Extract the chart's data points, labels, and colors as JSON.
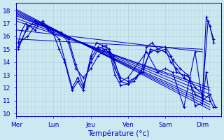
{
  "title": "Température (°c)",
  "x_labels": [
    "Mer",
    "Lun",
    "Jeu",
    "Ven",
    "Sam",
    "Dim"
  ],
  "x_tick_positions": [
    0,
    1,
    2,
    3,
    4,
    5
  ],
  "ylim": [
    9.8,
    18.6
  ],
  "yticks": [
    10,
    11,
    12,
    13,
    14,
    15,
    16,
    17,
    18
  ],
  "xlim": [
    0,
    5.5
  ],
  "bg_color": "#cce8f0",
  "line_color": "#0000cc",
  "grid_color": "#b0d0db",
  "ensemble_lines": [
    {
      "x": [
        0.0,
        5.2
      ],
      "y": [
        18.1,
        10.3
      ]
    },
    {
      "x": [
        0.0,
        5.2
      ],
      "y": [
        18.0,
        10.5
      ]
    },
    {
      "x": [
        0.0,
        5.2
      ],
      "y": [
        17.9,
        10.7
      ]
    },
    {
      "x": [
        0.0,
        5.2
      ],
      "y": [
        17.8,
        10.9
      ]
    },
    {
      "x": [
        0.0,
        5.2
      ],
      "y": [
        17.7,
        11.2
      ]
    },
    {
      "x": [
        0.0,
        5.2
      ],
      "y": [
        17.6,
        11.5
      ]
    },
    {
      "x": [
        0.0,
        5.2
      ],
      "y": [
        17.4,
        11.8
      ]
    },
    {
      "x": [
        0.0,
        5.2
      ],
      "y": [
        17.2,
        12.0
      ]
    },
    {
      "x": [
        0.0,
        5.0
      ],
      "y": [
        16.5,
        14.8
      ]
    },
    {
      "x": [
        0.0,
        5.0
      ],
      "y": [
        15.8,
        15.0
      ]
    }
  ],
  "irregular_series": [
    {
      "x": [
        0.05,
        0.15,
        0.25,
        0.5,
        0.7,
        1.0,
        1.15,
        1.3,
        1.5,
        1.65,
        1.8,
        2.0,
        2.15,
        2.3,
        2.5,
        2.65,
        2.8,
        3.0,
        3.15,
        3.35,
        3.5,
        3.65,
        3.8,
        4.0,
        4.15,
        4.3,
        4.5,
        4.65,
        4.8,
        5.0,
        5.1,
        5.2,
        5.3
      ],
      "y": [
        15.5,
        16.5,
        17.0,
        16.5,
        17.2,
        16.2,
        15.0,
        14.0,
        11.8,
        12.5,
        11.8,
        14.5,
        15.5,
        15.3,
        15.0,
        13.5,
        12.5,
        12.3,
        12.5,
        13.2,
        15.2,
        15.5,
        15.0,
        15.2,
        14.5,
        13.2,
        13.0,
        12.8,
        10.6,
        10.8,
        13.2,
        11.0,
        10.5
      ]
    },
    {
      "x": [
        0.05,
        0.15,
        0.3,
        0.5,
        0.7,
        0.85,
        1.0,
        1.15,
        1.3,
        1.5,
        1.65,
        1.8,
        2.0,
        2.2,
        2.35,
        2.5,
        2.65,
        2.8,
        3.0,
        3.2,
        3.4,
        3.6,
        3.8,
        4.0,
        4.15,
        4.3,
        4.5,
        4.65,
        4.8,
        5.0,
        5.1,
        5.2,
        5.3
      ],
      "y": [
        15.2,
        15.8,
        16.6,
        17.2,
        17.0,
        16.5,
        16.2,
        15.8,
        14.2,
        12.0,
        12.8,
        12.0,
        14.3,
        15.2,
        15.0,
        14.8,
        13.0,
        12.2,
        12.3,
        12.8,
        13.2,
        15.0,
        14.8,
        15.0,
        14.0,
        13.5,
        12.8,
        12.5,
        11.5,
        11.2,
        17.5,
        16.8,
        15.5
      ]
    },
    {
      "x": [
        0.05,
        0.3,
        0.55,
        0.8,
        1.0,
        1.2,
        1.4,
        1.6,
        1.8,
        2.0,
        2.2,
        2.4,
        2.6,
        2.8,
        3.0,
        3.2,
        3.4,
        3.6,
        3.8,
        4.0,
        4.2,
        4.4,
        4.6,
        4.8,
        5.0,
        5.15,
        5.3
      ],
      "y": [
        15.0,
        16.8,
        17.0,
        16.8,
        16.5,
        16.3,
        15.5,
        13.5,
        12.8,
        13.5,
        14.5,
        15.0,
        14.2,
        12.8,
        12.5,
        12.8,
        13.5,
        14.8,
        15.0,
        14.8,
        14.2,
        13.5,
        13.0,
        12.0,
        11.5,
        17.2,
        15.8
      ]
    },
    {
      "x": [
        0.05,
        0.3,
        0.55,
        1.0,
        1.2,
        1.4,
        1.6,
        1.8,
        2.0,
        2.2,
        2.4,
        2.6,
        2.8,
        3.0,
        3.5,
        3.8,
        4.0,
        4.2,
        4.5,
        4.8,
        5.0,
        5.2,
        5.35
      ],
      "y": [
        15.5,
        16.0,
        17.0,
        16.5,
        16.2,
        15.8,
        13.8,
        12.2,
        14.0,
        15.0,
        15.3,
        14.5,
        12.5,
        12.8,
        14.8,
        13.2,
        13.5,
        13.2,
        10.5,
        14.8,
        11.0,
        11.5,
        10.5
      ]
    }
  ]
}
